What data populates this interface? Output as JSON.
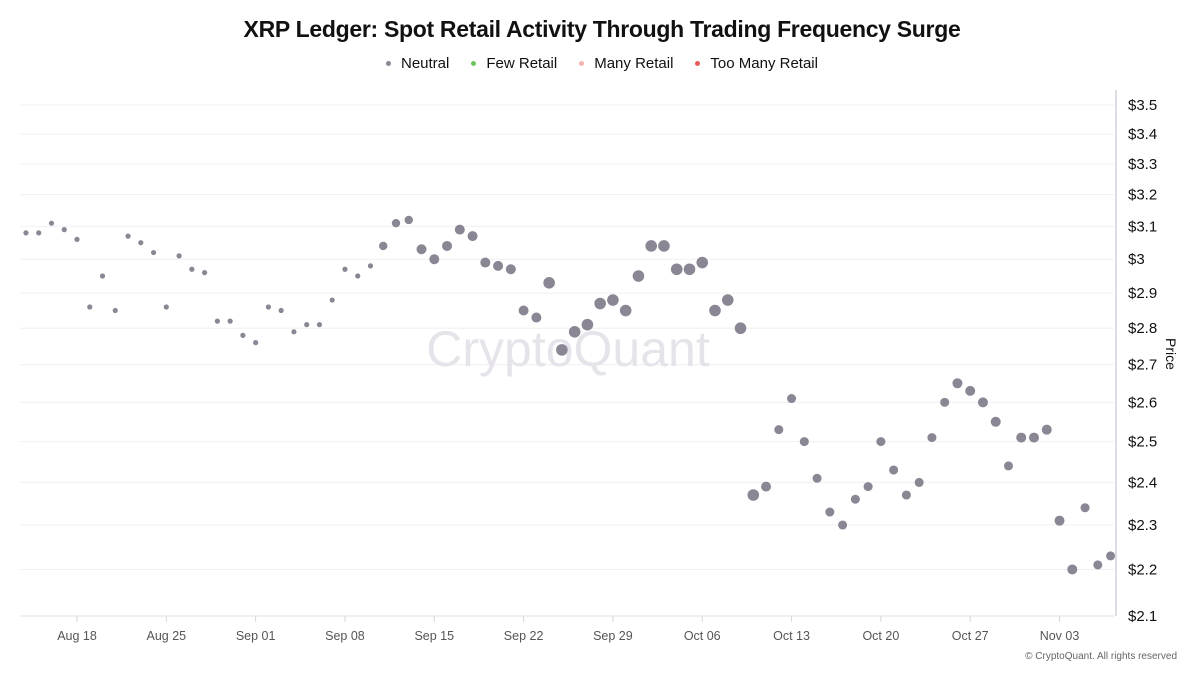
{
  "chart_data": {
    "type": "scatter",
    "title": "XRP Ledger: Spot Retail Activity Through Trading Frequency Surge",
    "ylabel": "Price",
    "y_scale": "log",
    "ylim": [
      2.1,
      3.5
    ],
    "y_ticks": [
      "$2.1",
      "$2.2",
      "$2.3",
      "$2.4",
      "$2.5",
      "$2.6",
      "$2.7",
      "$2.8",
      "$2.9",
      "$3",
      "$3.1",
      "$3.2",
      "$3.3",
      "$3.4",
      "$3.5"
    ],
    "y_tick_values": [
      2.1,
      2.2,
      2.3,
      2.4,
      2.5,
      2.6,
      2.7,
      2.8,
      2.9,
      3.0,
      3.1,
      3.2,
      3.3,
      3.4,
      3.5
    ],
    "x_ticks": [
      "Aug 18",
      "Aug 25",
      "Sep 01",
      "Sep 08",
      "Sep 15",
      "Sep 22",
      "Sep 29",
      "Oct 06",
      "Oct 13",
      "Oct 20",
      "Oct 27",
      "Nov 03"
    ],
    "x_tick_dates": [
      "2025-08-18",
      "2025-08-25",
      "2025-09-01",
      "2025-09-08",
      "2025-09-15",
      "2025-09-22",
      "2025-09-29",
      "2025-10-06",
      "2025-10-13",
      "2025-10-20",
      "2025-10-27",
      "2025-11-03"
    ],
    "grid": true,
    "legend_placement": "top-center",
    "legend": [
      {
        "name": "Neutral",
        "color": "#8a8694"
      },
      {
        "name": "Few Retail",
        "color": "#6cc45c"
      },
      {
        "name": "Many Retail",
        "color": "#f4b4b0"
      },
      {
        "name": "Too Many Retail",
        "color": "#e85c5c"
      }
    ],
    "series": [
      {
        "name": "Neutral",
        "color": "#8a8694",
        "x": [
          "2025-08-14",
          "2025-08-15",
          "2025-08-16",
          "2025-08-17",
          "2025-08-18",
          "2025-08-19",
          "2025-08-20",
          "2025-08-21",
          "2025-08-22",
          "2025-08-23",
          "2025-08-24",
          "2025-08-25",
          "2025-08-26",
          "2025-08-27",
          "2025-08-28",
          "2025-08-29",
          "2025-08-30",
          "2025-08-31",
          "2025-09-01",
          "2025-09-02",
          "2025-09-03",
          "2025-09-04",
          "2025-09-05",
          "2025-09-06",
          "2025-09-07",
          "2025-09-08",
          "2025-09-09",
          "2025-09-10",
          "2025-09-11",
          "2025-09-12",
          "2025-09-13",
          "2025-09-14",
          "2025-09-15",
          "2025-09-16",
          "2025-09-17",
          "2025-09-18",
          "2025-09-19",
          "2025-09-20",
          "2025-09-21",
          "2025-09-22",
          "2025-09-23",
          "2025-09-24",
          "2025-09-25",
          "2025-09-26",
          "2025-09-27",
          "2025-09-28",
          "2025-09-29",
          "2025-09-30",
          "2025-10-01",
          "2025-10-02",
          "2025-10-03",
          "2025-10-04",
          "2025-10-05",
          "2025-10-06",
          "2025-10-07",
          "2025-10-08",
          "2025-10-09",
          "2025-10-10",
          "2025-10-11",
          "2025-10-12",
          "2025-10-13",
          "2025-10-14",
          "2025-10-15",
          "2025-10-16",
          "2025-10-17",
          "2025-10-18",
          "2025-10-19",
          "2025-10-20",
          "2025-10-21",
          "2025-10-22",
          "2025-10-23",
          "2025-10-24",
          "2025-10-25",
          "2025-10-26",
          "2025-10-27",
          "2025-10-28",
          "2025-10-29",
          "2025-10-30",
          "2025-10-31",
          "2025-11-01",
          "2025-11-02",
          "2025-11-03",
          "2025-11-04",
          "2025-11-05",
          "2025-11-06",
          "2025-11-07"
        ],
        "y": [
          3.08,
          3.08,
          3.11,
          3.09,
          3.06,
          2.86,
          2.95,
          2.85,
          3.07,
          3.05,
          3.02,
          2.86,
          3.01,
          2.97,
          2.96,
          2.82,
          2.82,
          2.78,
          2.76,
          2.86,
          2.85,
          2.79,
          2.81,
          2.81,
          2.88,
          2.97,
          2.95,
          2.98,
          3.04,
          3.11,
          3.12,
          3.03,
          3.0,
          3.04,
          3.09,
          3.07,
          2.99,
          2.98,
          2.97,
          2.85,
          2.83,
          2.93,
          2.74,
          2.79,
          2.81,
          2.87,
          2.88,
          2.85,
          2.95,
          3.04,
          3.04,
          2.97,
          2.97,
          2.99,
          2.85,
          2.88,
          2.8,
          2.37,
          2.39,
          2.53,
          2.61,
          2.5,
          2.41,
          2.33,
          2.3,
          2.36,
          2.39,
          2.5,
          2.43,
          2.37,
          2.4,
          2.51,
          2.6,
          2.65,
          2.63,
          2.6,
          2.55,
          2.44,
          2.51,
          2.51,
          2.53,
          2.31,
          2.2,
          2.34,
          2.21,
          2.23
        ],
        "relative_frequency": [
          1,
          1,
          1,
          1,
          1,
          1,
          1,
          1,
          1,
          1,
          1,
          1,
          1,
          1,
          1,
          1,
          1,
          1,
          1,
          1,
          1,
          1,
          1,
          1,
          1,
          1,
          1,
          1,
          2,
          2,
          2,
          2.5,
          2.5,
          2.5,
          2.5,
          2.5,
          2.5,
          2.5,
          2.5,
          2.5,
          2.5,
          3,
          3,
          3,
          3,
          3,
          3,
          3,
          3,
          3,
          3,
          3,
          3,
          3,
          3,
          3,
          3,
          3,
          2.5,
          2.2,
          2.2,
          2.2,
          2.2,
          2.2,
          2.2,
          2.2,
          2.2,
          2.2,
          2.2,
          2.2,
          2.2,
          2.2,
          2.2,
          2.5,
          2.5,
          2.5,
          2.5,
          2.2,
          2.5,
          2.5,
          2.5,
          2.5,
          2.5,
          2.2,
          2.2,
          2.2
        ]
      }
    ],
    "watermark": "CryptoQuant"
  },
  "footer": "© CryptoQuant. All rights reserved"
}
